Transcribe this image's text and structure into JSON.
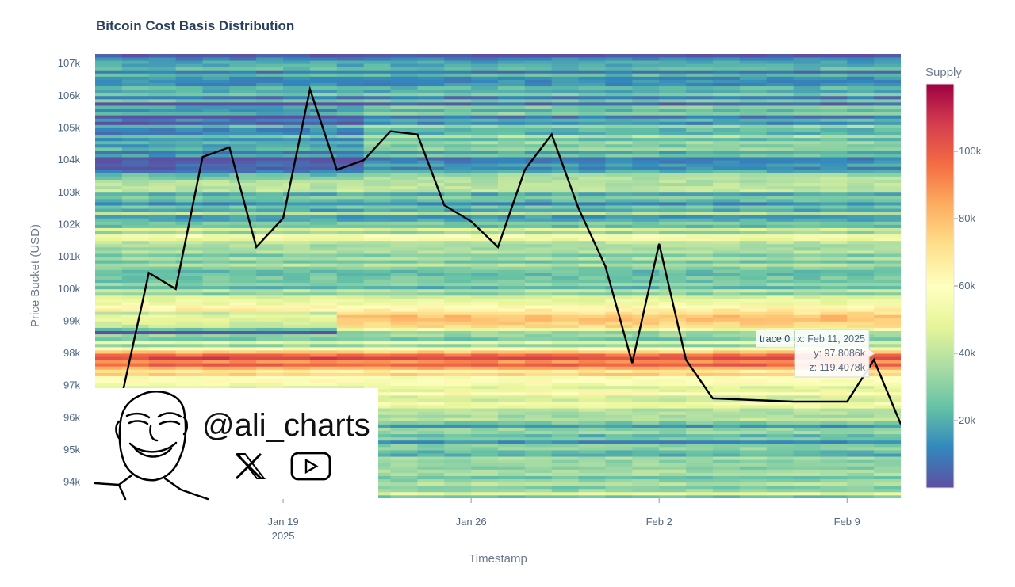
{
  "chart_data": {
    "type": "heatmap",
    "title": "Bitcoin Cost Basis Distribution",
    "xlabel": "Timestamp",
    "ylabel": "Price Bucket (USD)",
    "colorbar_title": "Supply",
    "colorscale": "Spectral (reversed)",
    "x_ticks": [
      {
        "date": "2025-01-19",
        "label": "Jan 19",
        "sublabel": "2025"
      },
      {
        "date": "2025-01-26",
        "label": "Jan 26",
        "sublabel": ""
      },
      {
        "date": "2025-02-02",
        "label": "Feb 2",
        "sublabel": ""
      },
      {
        "date": "2025-02-09",
        "label": "Feb 9",
        "sublabel": ""
      }
    ],
    "x_range": [
      "2025-01-12",
      "2025-02-11"
    ],
    "y_ticks": [
      "94k",
      "95k",
      "96k",
      "97k",
      "98k",
      "99k",
      "100k",
      "101k",
      "102k",
      "103k",
      "104k",
      "105k",
      "106k",
      "107k"
    ],
    "y_range": [
      93500,
      107300
    ],
    "z_ticks": [
      "20k",
      "40k",
      "60k",
      "80k",
      "100k"
    ],
    "z_range": [
      0,
      120000
    ],
    "heatmap_profile": [
      {
        "price": 93700,
        "supply": 38000
      },
      {
        "price": 94000,
        "supply": 30000
      },
      {
        "price": 94500,
        "supply": 28000
      },
      {
        "price": 95000,
        "supply": 26000
      },
      {
        "price": 95500,
        "supply": 22000
      },
      {
        "price": 96000,
        "supply": 30000
      },
      {
        "price": 96500,
        "supply": 46000
      },
      {
        "price": 97000,
        "supply": 60000
      },
      {
        "price": 97400,
        "supply": 66000
      },
      {
        "price": 97800,
        "supply": 112000
      },
      {
        "price": 98200,
        "supply": 40000
      },
      {
        "price": 98600,
        "supply": 36000
      },
      {
        "price": 99000,
        "supply": 88000
      },
      {
        "price": 99400,
        "supply": 64000
      },
      {
        "price": 100000,
        "supply": 22000
      },
      {
        "price": 100600,
        "supply": 24000
      },
      {
        "price": 101000,
        "supply": 34000
      },
      {
        "price": 101600,
        "supply": 46000
      },
      {
        "price": 102000,
        "supply": 30000
      },
      {
        "price": 102600,
        "supply": 22000
      },
      {
        "price": 103000,
        "supply": 30000
      },
      {
        "price": 103600,
        "supply": 26000
      },
      {
        "price": 104000,
        "supply": 22000
      },
      {
        "price": 104600,
        "supply": 30000
      },
      {
        "price": 105000,
        "supply": 24000
      },
      {
        "price": 105600,
        "supply": 18000
      },
      {
        "price": 106000,
        "supply": 16000
      },
      {
        "price": 106600,
        "supply": 22000
      },
      {
        "price": 107000,
        "supply": 12000
      }
    ],
    "series": [
      {
        "type": "line",
        "points": [
          {
            "x": "2025-01-13",
            "y": 96700
          },
          {
            "x": "2025-01-14",
            "y": 100500
          },
          {
            "x": "2025-01-15",
            "y": 100000
          },
          {
            "x": "2025-01-16",
            "y": 104100
          },
          {
            "x": "2025-01-17",
            "y": 104400
          },
          {
            "x": "2025-01-18",
            "y": 101300
          },
          {
            "x": "2025-01-19",
            "y": 102200
          },
          {
            "x": "2025-01-20",
            "y": 106200
          },
          {
            "x": "2025-01-21",
            "y": 103700
          },
          {
            "x": "2025-01-22",
            "y": 104000
          },
          {
            "x": "2025-01-23",
            "y": 104900
          },
          {
            "x": "2025-01-24",
            "y": 104800
          },
          {
            "x": "2025-01-25",
            "y": 102600
          },
          {
            "x": "2025-01-26",
            "y": 102100
          },
          {
            "x": "2025-01-27",
            "y": 101300
          },
          {
            "x": "2025-01-28",
            "y": 103700
          },
          {
            "x": "2025-01-29",
            "y": 104800
          },
          {
            "x": "2025-01-30",
            "y": 102500
          },
          {
            "x": "2025-01-31",
            "y": 100700
          },
          {
            "x": "2025-02-01",
            "y": 97700
          },
          {
            "x": "2025-02-02",
            "y": 101400
          },
          {
            "x": "2025-02-03",
            "y": 97800
          },
          {
            "x": "2025-02-04",
            "y": 96600
          },
          {
            "x": "2025-02-07",
            "y": 96500
          },
          {
            "x": "2025-02-09",
            "y": 96500
          },
          {
            "x": "2025-02-10",
            "y": 97800
          },
          {
            "x": "2025-02-11",
            "y": 95800
          }
        ]
      }
    ],
    "tooltip": {
      "name": "trace 0",
      "x_line": "x: Feb 11, 2025",
      "y_line": "y: 97.8086k",
      "z_line": "z: 119.4078k"
    }
  },
  "overlay": {
    "handle": "@ali_charts",
    "icons": [
      "x-logo-icon",
      "youtube-play-icon"
    ],
    "avatar": "cartoon-face-avatar"
  }
}
